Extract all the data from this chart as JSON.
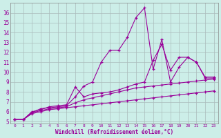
{
  "title": "",
  "xlabel": "Windchill (Refroidissement éolien,°C)",
  "ylabel": "",
  "background_color": "#cceee8",
  "line_color": "#990099",
  "grid_color": "#aabbbb",
  "xlim": [
    -0.5,
    23.5
  ],
  "ylim": [
    4.8,
    17.0
  ],
  "yticks": [
    5,
    6,
    7,
    8,
    9,
    10,
    11,
    12,
    13,
    14,
    15,
    16
  ],
  "xticks": [
    0,
    1,
    2,
    3,
    4,
    5,
    6,
    7,
    8,
    9,
    10,
    11,
    12,
    13,
    14,
    15,
    16,
    17,
    18,
    19,
    20,
    21,
    22,
    23
  ],
  "series": [
    [
      5.2,
      5.2,
      5.9,
      6.3,
      6.4,
      6.5,
      6.6,
      7.5,
      8.6,
      9.0,
      11.0,
      12.2,
      12.2,
      13.5,
      15.5,
      16.5,
      10.3,
      13.3,
      9.0,
      10.5,
      11.5,
      11.0,
      9.5,
      9.5
    ],
    [
      5.2,
      5.2,
      6.0,
      6.2,
      6.5,
      6.6,
      6.7,
      8.5,
      7.5,
      7.8,
      7.9,
      8.0,
      8.2,
      8.5,
      8.8,
      9.0,
      11.2,
      12.8,
      10.2,
      11.5,
      11.5,
      11.0,
      9.4,
      9.4
    ],
    [
      5.2,
      5.2,
      5.9,
      6.1,
      6.3,
      6.4,
      6.5,
      6.9,
      7.2,
      7.4,
      7.6,
      7.8,
      8.0,
      8.2,
      8.4,
      8.5,
      8.6,
      8.7,
      8.8,
      8.9,
      9.0,
      9.1,
      9.2,
      9.3
    ],
    [
      5.2,
      5.2,
      5.8,
      6.0,
      6.2,
      6.3,
      6.4,
      6.5,
      6.6,
      6.7,
      6.8,
      6.9,
      7.0,
      7.1,
      7.2,
      7.3,
      7.4,
      7.5,
      7.6,
      7.7,
      7.8,
      7.9,
      8.0,
      8.1
    ]
  ]
}
